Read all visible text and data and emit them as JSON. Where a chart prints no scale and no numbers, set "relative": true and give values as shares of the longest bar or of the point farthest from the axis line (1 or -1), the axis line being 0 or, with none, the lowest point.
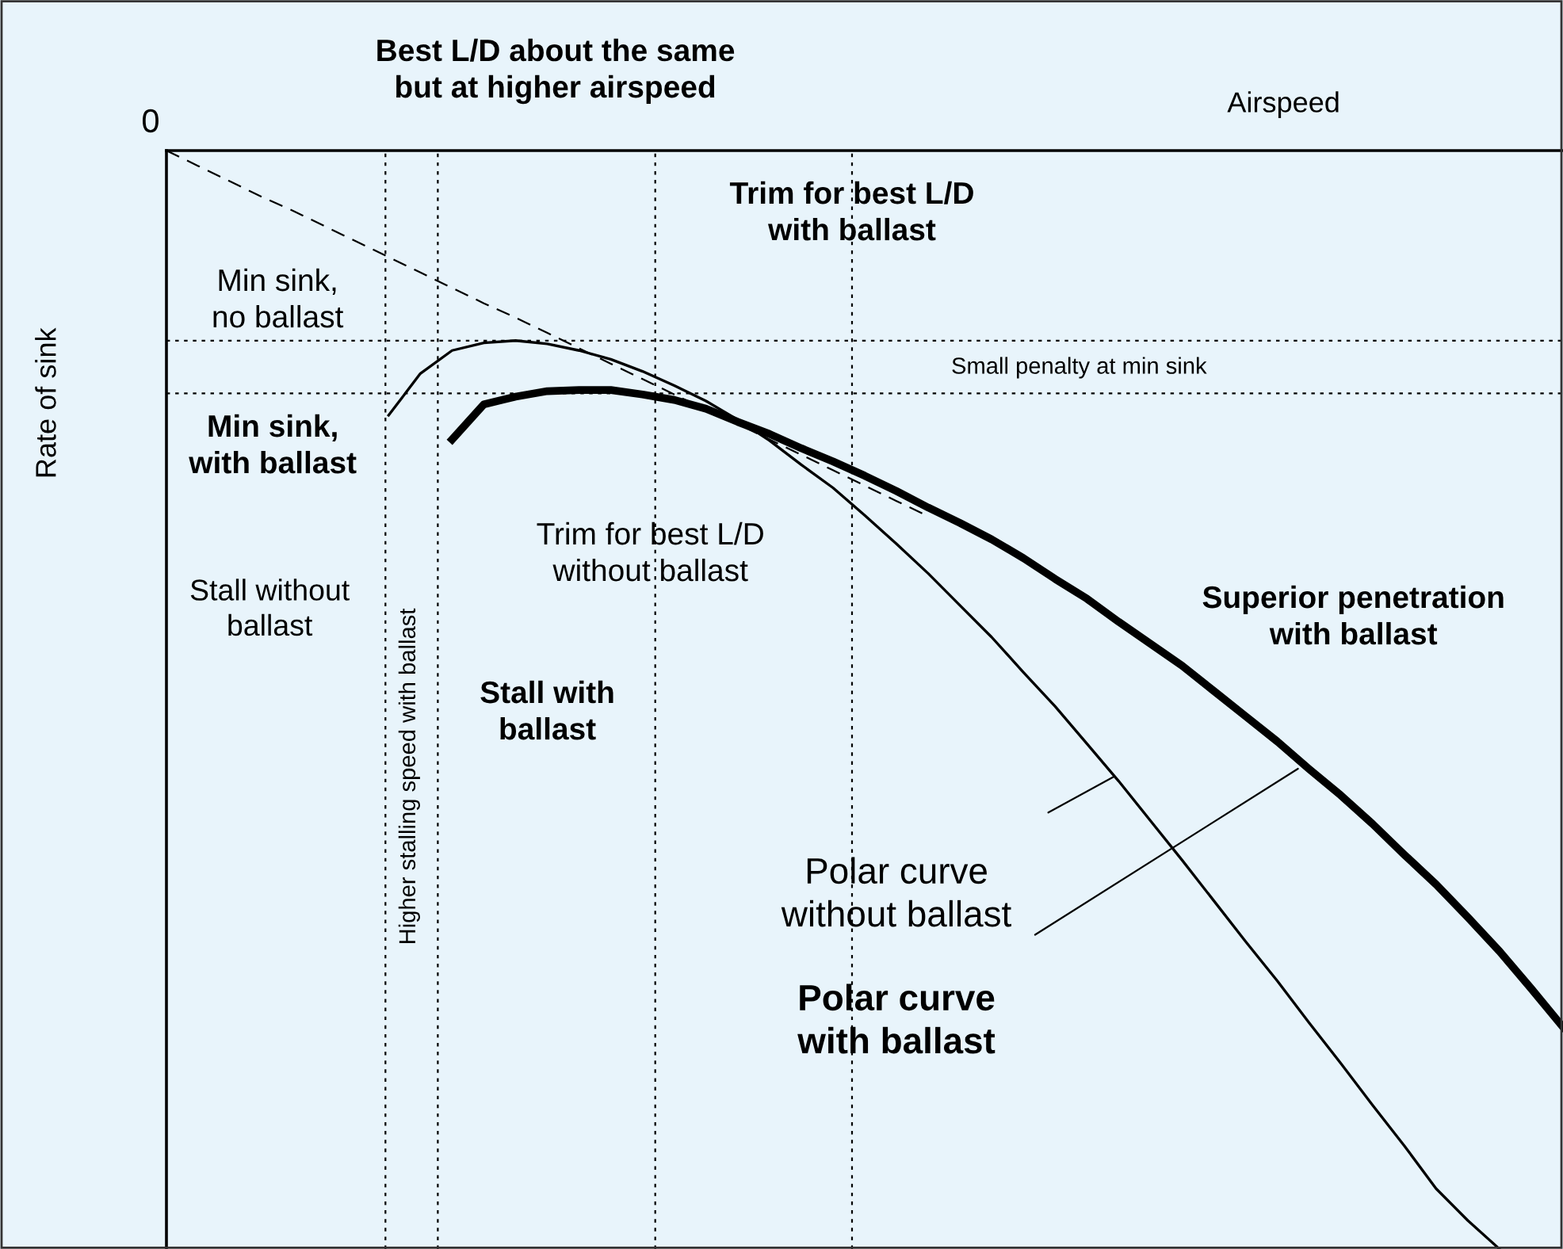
{
  "chart_data": {
    "type": "line",
    "relative": true,
    "xlabel": "Airspeed",
    "ylabel": "Rate of sink",
    "legend": false,
    "marker": "none",
    "categories": [
      null,
      null,
      null,
      null,
      null,
      null,
      null,
      null,
      null,
      null,
      null,
      null,
      null,
      null,
      null,
      null,
      null,
      null,
      null,
      null,
      null,
      null,
      null,
      null,
      null,
      null,
      null,
      null,
      null,
      null,
      null,
      null,
      null,
      null,
      null,
      null,
      null,
      null,
      null,
      null,
      null,
      null,
      null,
      null,
      null
    ],
    "series": [
      {
        "color": "#000000",
        "line_style": "solid",
        "values": [
          null,
          null,
          null,
          null,
          null,
          null,
          null,
          -0.241,
          -0.203,
          -0.182,
          -0.175,
          -0.173,
          -0.176,
          -0.182,
          -0.19,
          -0.201,
          -0.214,
          -0.228,
          -0.245,
          -0.264,
          -0.286,
          -0.307,
          -0.332,
          -0.358,
          -0.385,
          -0.414,
          -0.443,
          -0.475,
          -0.506,
          -0.54,
          -0.574,
          -0.61,
          -0.646,
          -0.683,
          -0.72,
          -0.756,
          -0.794,
          -0.831,
          -0.869,
          -0.906,
          -0.945,
          -0.974,
          -1.0,
          null,
          null
        ]
      },
      {
        "color": "#000000",
        "line_style": "solid",
        "values": [
          null,
          null,
          null,
          null,
          null,
          null,
          null,
          null,
          null,
          -0.263,
          -0.231,
          -0.224,
          -0.219,
          -0.218,
          -0.218,
          -0.222,
          -0.227,
          -0.235,
          -0.247,
          -0.258,
          -0.271,
          -0.283,
          -0.296,
          -0.31,
          -0.325,
          -0.339,
          -0.354,
          -0.371,
          -0.39,
          -0.408,
          -0.429,
          -0.449,
          -0.469,
          -0.492,
          -0.515,
          -0.538,
          -0.563,
          -0.587,
          -0.613,
          -0.641,
          -0.668,
          -0.698,
          -0.729,
          -0.763,
          -0.798
        ]
      },
      {
        "color": "#000000",
        "line_style": "dashed",
        "values": [
          0,
          -0.014,
          -0.028,
          -0.042,
          -0.055,
          -0.069,
          -0.083,
          -0.097,
          -0.111,
          -0.125,
          -0.139,
          -0.152,
          -0.166,
          -0.18,
          -0.194,
          -0.208,
          -0.222,
          -0.236,
          -0.249,
          -0.263,
          -0.277,
          -0.291,
          -0.305,
          -0.319,
          -0.333,
          null,
          null,
          null,
          null,
          null,
          null,
          null,
          null,
          null,
          null,
          null,
          null,
          null,
          null,
          null,
          null,
          null,
          null,
          null,
          null
        ]
      }
    ],
    "ref_lines": [
      {
        "axis": "y",
        "value": -0.173,
        "color": "#000000",
        "line_style": "dotted"
      },
      {
        "axis": "y",
        "value": -0.221,
        "color": "#000000",
        "line_style": "dotted"
      }
    ],
    "annotations": [
      "Best L/D about the same\nbut at higher airspeed",
      "Trim for best L/D\nwith ballast",
      "Min sink,\nno ballast",
      "Small penalty at min sink",
      "Min sink,\nwith ballast",
      "Trim for best L/D\nwithout ballast",
      "Stall without\nballast",
      "Higher stalling speed with ballast",
      "Stall with\nballast",
      "Superior penetration\nwith ballast",
      "Polar curve\nwithout ballast",
      "Polar curve\nwith ballast",
      "0"
    ]
  }
}
